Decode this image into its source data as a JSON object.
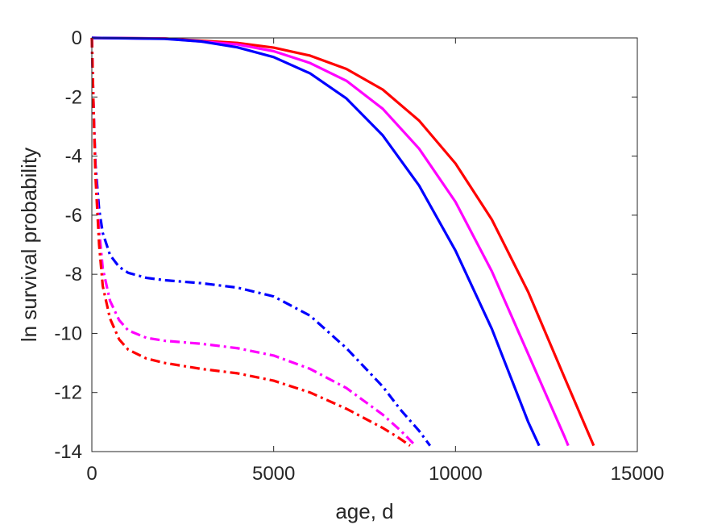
{
  "chart_data": {
    "type": "line",
    "title": "",
    "xlabel": "age, d",
    "ylabel": "ln survival probability",
    "xlim": [
      0,
      15000
    ],
    "ylim": [
      -14,
      0
    ],
    "xticks": [
      0,
      5000,
      10000,
      15000
    ],
    "yticks": [
      0,
      -2,
      -4,
      -6,
      -8,
      -10,
      -12,
      -14
    ],
    "grid": false,
    "legend": "none",
    "series": [
      {
        "color": "#ff0000",
        "style": "solid",
        "x": [
          0,
          2000,
          4000,
          5000,
          6000,
          7000,
          8000,
          9000,
          10000,
          11000,
          12000,
          13000,
          13800
        ],
        "y": [
          0,
          -0.02,
          -0.17,
          -0.33,
          -0.6,
          -1.05,
          -1.75,
          -2.8,
          -4.25,
          -6.15,
          -8.6,
          -11.5,
          -13.8
        ]
      },
      {
        "color": "#ff00ff",
        "style": "solid",
        "x": [
          0,
          2000,
          4000,
          5000,
          6000,
          7000,
          8000,
          9000,
          10000,
          11000,
          12000,
          13000,
          13100
        ],
        "y": [
          0,
          -0.02,
          -0.22,
          -0.45,
          -0.85,
          -1.45,
          -2.4,
          -3.75,
          -5.55,
          -7.9,
          -10.7,
          -13.5,
          -13.8
        ]
      },
      {
        "color": "#0000ff",
        "style": "solid",
        "x": [
          0,
          2000,
          3000,
          4000,
          5000,
          6000,
          7000,
          8000,
          9000,
          10000,
          11000,
          12000,
          12300
        ],
        "y": [
          0,
          -0.03,
          -0.12,
          -0.32,
          -0.65,
          -1.2,
          -2.05,
          -3.3,
          -5.0,
          -7.2,
          -9.85,
          -13.0,
          -13.8
        ]
      },
      {
        "color": "#0000ff",
        "style": "dashdot",
        "x": [
          0,
          50,
          100,
          200,
          300,
          500,
          750,
          1000,
          1500,
          2000,
          3000,
          4000,
          5000,
          6000,
          7000,
          8000,
          8500,
          9000,
          9300
        ],
        "y": [
          0,
          -2.5,
          -4.3,
          -5.8,
          -6.6,
          -7.35,
          -7.75,
          -7.95,
          -8.12,
          -8.2,
          -8.3,
          -8.45,
          -8.75,
          -9.4,
          -10.5,
          -11.8,
          -12.6,
          -13.3,
          -13.8
        ]
      },
      {
        "color": "#ff00ff",
        "style": "dashdot",
        "x": [
          0,
          50,
          100,
          200,
          300,
          500,
          750,
          1000,
          1500,
          2000,
          3000,
          4000,
          5000,
          6000,
          7000,
          8000,
          8500,
          8900
        ],
        "y": [
          0,
          -2.5,
          -4.5,
          -6.5,
          -7.8,
          -8.9,
          -9.55,
          -9.9,
          -10.15,
          -10.25,
          -10.35,
          -10.5,
          -10.75,
          -11.2,
          -11.85,
          -12.75,
          -13.3,
          -13.8
        ]
      },
      {
        "color": "#ff0000",
        "style": "dashdot",
        "x": [
          0,
          50,
          100,
          200,
          300,
          500,
          750,
          1000,
          1500,
          2000,
          3000,
          4000,
          5000,
          6000,
          7000,
          8000,
          8400,
          8750
        ],
        "y": [
          0,
          -2.5,
          -4.7,
          -7.0,
          -8.4,
          -9.5,
          -10.2,
          -10.55,
          -10.85,
          -11.0,
          -11.2,
          -11.35,
          -11.6,
          -12.0,
          -12.55,
          -13.2,
          -13.5,
          -13.8
        ]
      }
    ]
  }
}
